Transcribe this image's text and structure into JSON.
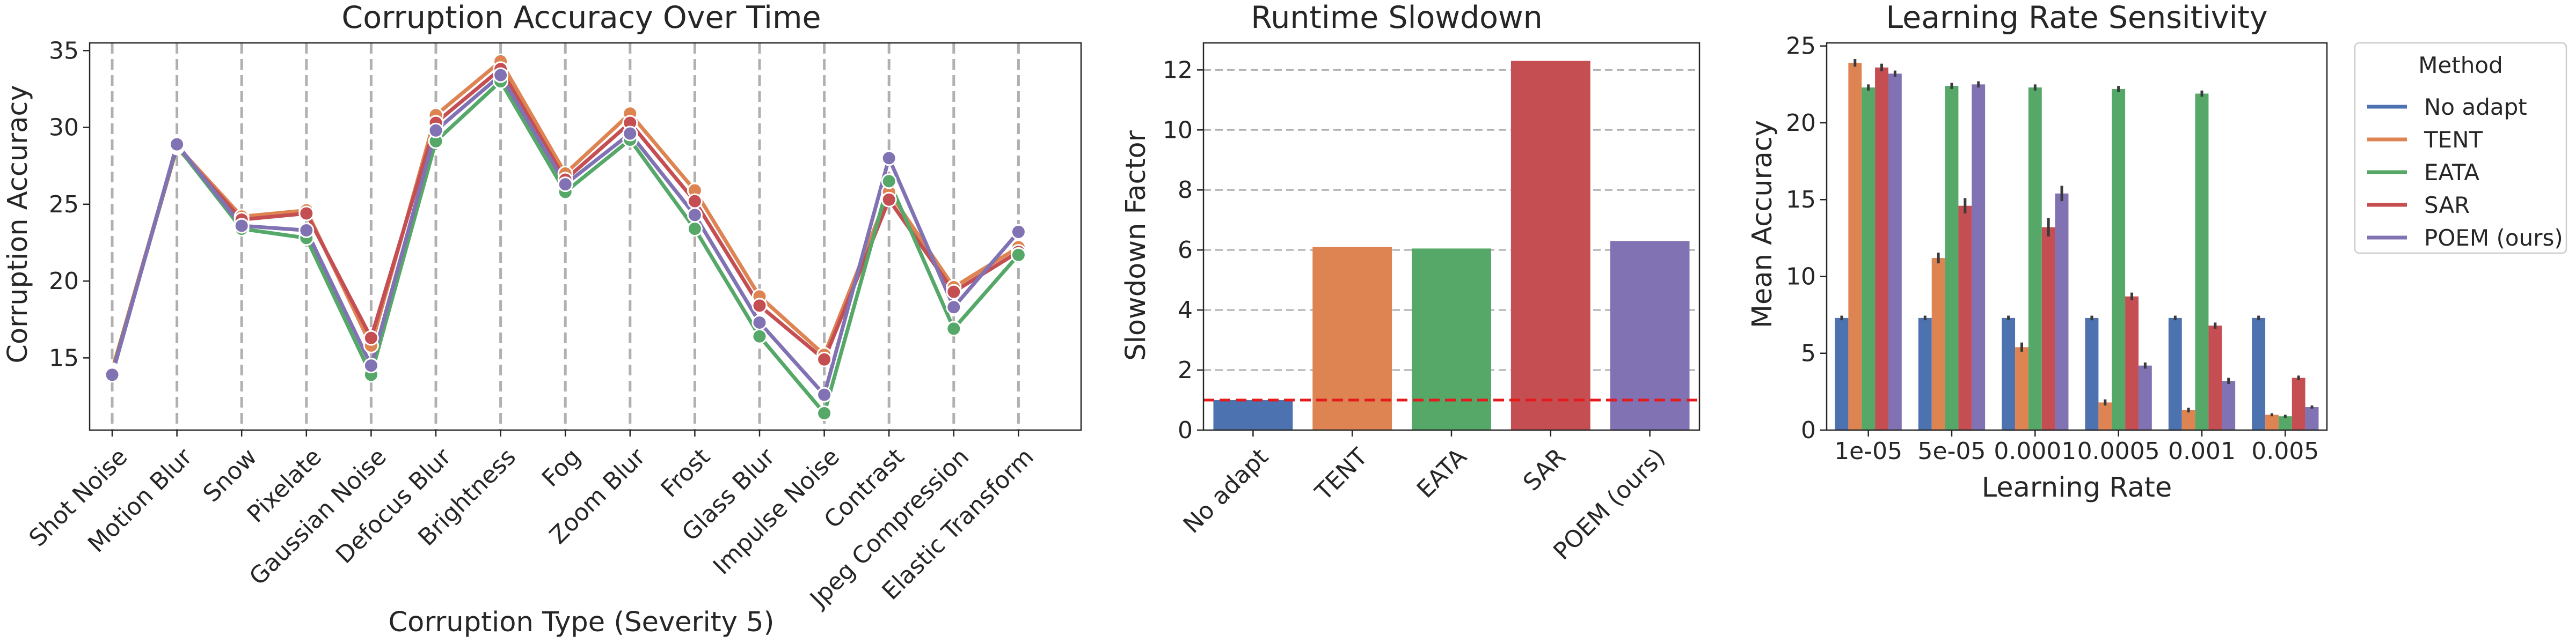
{
  "chart_data": [
    {
      "type": "line",
      "title": "Corruption Accuracy Over Time",
      "xlabel": "Corruption Type (Severity 5)",
      "ylabel": "Corruption Accuracy",
      "ylim": [
        10.3,
        35.5
      ],
      "yticks": [
        15,
        20,
        25,
        30,
        35
      ],
      "grid": "vertical dashed",
      "categories": [
        "Shot Noise",
        "Motion Blur",
        "Snow",
        "Pixelate",
        "Gaussian Noise",
        "Defocus Blur",
        "Brightness",
        "Fog",
        "Zoom Blur",
        "Frost",
        "Glass Blur",
        "Impulse Noise",
        "Contrast",
        "Jpeg Compression",
        "Elastic Transform"
      ],
      "series": [
        {
          "name": "TENT",
          "color": "#dd8452",
          "values": [
            14.2,
            28.8,
            24.2,
            24.6,
            15.8,
            30.8,
            34.3,
            27.0,
            30.9,
            25.9,
            19.0,
            15.2,
            25.8,
            19.6,
            22.2
          ]
        },
        {
          "name": "SAR",
          "color": "#c44e52",
          "values": [
            14.1,
            28.7,
            24.0,
            24.4,
            16.3,
            30.3,
            33.8,
            26.6,
            30.3,
            25.2,
            18.4,
            14.9,
            25.3,
            19.3,
            21.9
          ]
        },
        {
          "name": "EATA",
          "color": "#55a868",
          "values": [
            14.0,
            28.8,
            23.4,
            22.8,
            13.9,
            29.1,
            33.0,
            25.8,
            29.2,
            23.4,
            16.4,
            11.4,
            26.5,
            16.9,
            21.7
          ]
        },
        {
          "name": "POEM (ours)",
          "color": "#8172b3",
          "values": [
            13.9,
            28.9,
            23.6,
            23.3,
            14.5,
            29.8,
            33.4,
            26.3,
            29.6,
            24.3,
            17.3,
            12.6,
            28.0,
            18.3,
            23.2
          ]
        }
      ]
    },
    {
      "type": "bar",
      "title": "Runtime Slowdown",
      "xlabel": "",
      "ylabel": "Slowdown Factor",
      "ylim": [
        0,
        12.9
      ],
      "yticks": [
        0,
        2,
        4,
        6,
        8,
        10,
        12
      ],
      "grid": "horizontal dashed",
      "reference_line": 1,
      "categories": [
        "No adapt",
        "TENT",
        "EATA",
        "SAR",
        "POEM (ours)"
      ],
      "colors": [
        "#4c72b0",
        "#dd8452",
        "#55a868",
        "#c44e52",
        "#8172b3"
      ],
      "values": [
        1.0,
        6.1,
        6.05,
        12.3,
        6.3
      ]
    },
    {
      "type": "bar",
      "title": "Learning Rate Sensitivity",
      "xlabel": "Learning Rate",
      "ylabel": "Mean Accuracy",
      "ylim": [
        0,
        25.2
      ],
      "yticks": [
        0,
        5,
        10,
        15,
        20,
        25
      ],
      "categories": [
        "1e-05",
        "5e-05",
        "0.0001",
        "0.0005",
        "0.001",
        "0.005"
      ],
      "legend": {
        "title": "Method",
        "placement": "outside right"
      },
      "series": [
        {
          "name": "No adapt",
          "color": "#4c72b0",
          "values": [
            7.3,
            7.3,
            7.3,
            7.3,
            7.3,
            7.3
          ],
          "err": [
            0.15,
            0.15,
            0.15,
            0.15,
            0.15,
            0.15
          ]
        },
        {
          "name": "TENT",
          "color": "#dd8452",
          "values": [
            23.9,
            11.2,
            5.4,
            1.8,
            1.3,
            1.0
          ],
          "err": [
            0.25,
            0.35,
            0.3,
            0.2,
            0.15,
            0.1
          ]
        },
        {
          "name": "EATA",
          "color": "#55a868",
          "values": [
            22.3,
            22.4,
            22.3,
            22.2,
            21.9,
            0.9
          ],
          "err": [
            0.2,
            0.2,
            0.2,
            0.2,
            0.2,
            0.1
          ]
        },
        {
          "name": "SAR",
          "color": "#c44e52",
          "values": [
            23.6,
            14.6,
            13.2,
            8.7,
            6.8,
            3.4
          ],
          "err": [
            0.25,
            0.5,
            0.6,
            0.25,
            0.2,
            0.15
          ]
        },
        {
          "name": "POEM (ours)",
          "color": "#8172b3",
          "values": [
            23.2,
            22.5,
            15.4,
            4.2,
            3.2,
            1.5
          ],
          "err": [
            0.2,
            0.2,
            0.5,
            0.2,
            0.2,
            0.1
          ]
        }
      ]
    }
  ]
}
